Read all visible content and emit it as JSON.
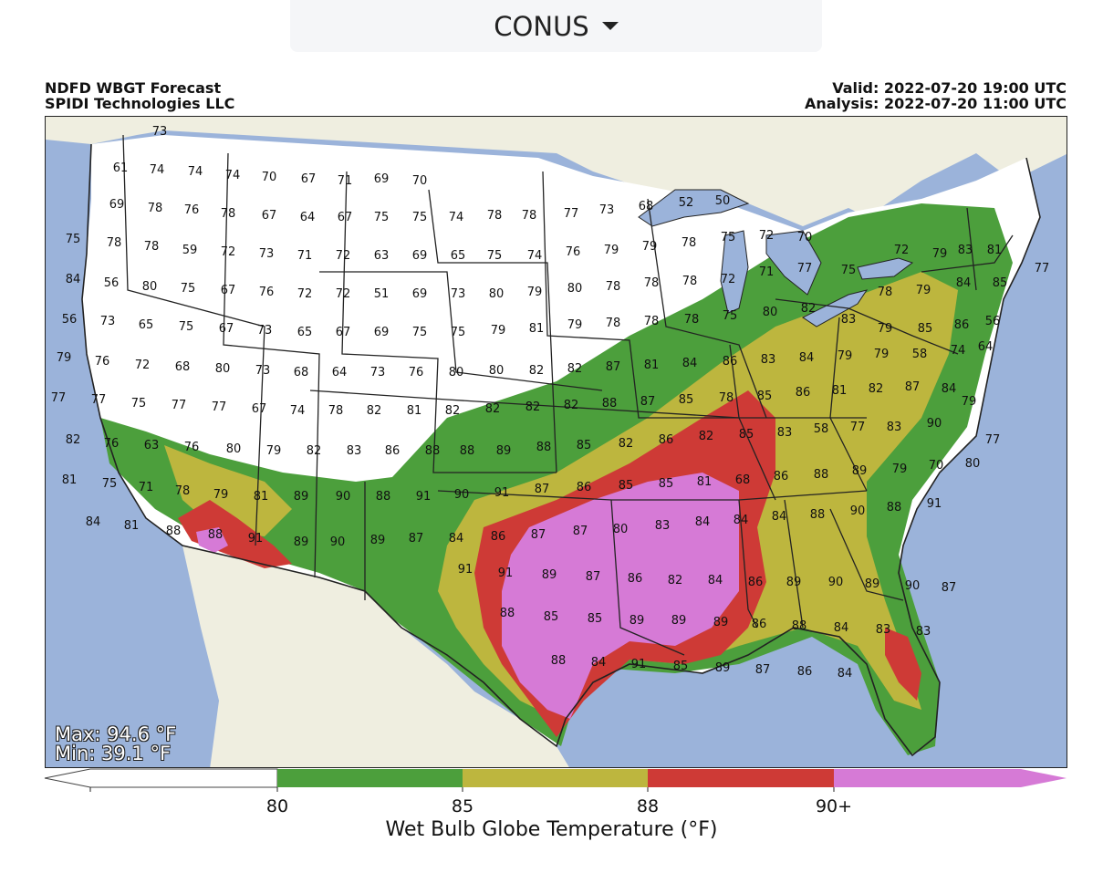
{
  "region_selector": {
    "value": "CONUS"
  },
  "header": {
    "title": "NDFD WBGT Forecast",
    "org": "SPIDI Technologies LLC",
    "valid": "Valid: 2022-07-20 19:00 UTC",
    "analysis": "Analysis: 2022-07-20 11:00 UTC"
  },
  "stats": {
    "max": "Max: 94.6 °F",
    "min": "Min: 39.1 °F"
  },
  "colorbar": {
    "title": "Wet Bulb Globe Temperature (°F)",
    "ticks": [
      "80",
      "85",
      "88",
      "90+"
    ],
    "colors": {
      "below": "#ffffff",
      "c80": "#4c9f3c",
      "c85": "#bdb63e",
      "c88": "#ce3a36",
      "c90": "#d67ad6"
    }
  },
  "map_colors": {
    "ocean": "#9bb3da",
    "land": "#efeee0",
    "lakes": "#9bb3da"
  },
  "point_values": [
    "73",
    "61",
    "74",
    "74",
    "74",
    "70",
    "67",
    "71",
    "69",
    "70",
    "69",
    "78",
    "76",
    "78",
    "67",
    "64",
    "67",
    "75",
    "75",
    "74",
    "78",
    "78",
    "77",
    "73",
    "68",
    "52",
    "50",
    "75",
    "78",
    "78",
    "59",
    "72",
    "73",
    "71",
    "72",
    "63",
    "69",
    "65",
    "75",
    "74",
    "76",
    "79",
    "79",
    "78",
    "75",
    "72",
    "70",
    "72",
    "79",
    "83",
    "81",
    "84",
    "56",
    "80",
    "75",
    "67",
    "76",
    "72",
    "72",
    "51",
    "69",
    "73",
    "80",
    "79",
    "80",
    "78",
    "78",
    "78",
    "72",
    "71",
    "77",
    "75",
    "78",
    "79",
    "84",
    "85",
    "77",
    "56",
    "73",
    "65",
    "75",
    "67",
    "73",
    "65",
    "67",
    "69",
    "75",
    "75",
    "79",
    "81",
    "79",
    "78",
    "78",
    "78",
    "75",
    "80",
    "82",
    "83",
    "79",
    "85",
    "86",
    "56",
    "79",
    "76",
    "72",
    "68",
    "80",
    "73",
    "68",
    "64",
    "73",
    "76",
    "80",
    "80",
    "82",
    "82",
    "87",
    "81",
    "84",
    "86",
    "83",
    "84",
    "79",
    "79",
    "58",
    "74",
    "64",
    "77",
    "77",
    "75",
    "77",
    "77",
    "67",
    "74",
    "78",
    "82",
    "81",
    "82",
    "82",
    "82",
    "82",
    "88",
    "87",
    "85",
    "78",
    "85",
    "86",
    "81",
    "82",
    "87",
    "84",
    "77",
    "82",
    "76",
    "63",
    "76",
    "80",
    "79",
    "82",
    "83",
    "86",
    "88",
    "88",
    "89",
    "88",
    "85",
    "82",
    "86",
    "82",
    "85",
    "83",
    "58",
    "77",
    "83",
    "90",
    "79",
    "81",
    "75",
    "71",
    "78",
    "79",
    "81",
    "89",
    "90",
    "88",
    "91",
    "90",
    "91",
    "87",
    "86",
    "85",
    "85",
    "81",
    "68",
    "86",
    "88",
    "89",
    "79",
    "70",
    "80",
    "84",
    "81",
    "88",
    "88",
    "91",
    "89",
    "90",
    "89",
    "87",
    "84",
    "86",
    "87",
    "87",
    "80",
    "83",
    "84",
    "84",
    "84",
    "88",
    "90",
    "88",
    "91",
    "91",
    "91",
    "89",
    "87",
    "86",
    "82",
    "84",
    "86",
    "89",
    "90",
    "89",
    "90",
    "87",
    "88",
    "85",
    "85",
    "89",
    "89",
    "89",
    "86",
    "88",
    "84",
    "83",
    "83",
    "88",
    "84",
    "91",
    "85",
    "89",
    "87",
    "86",
    "84"
  ]
}
